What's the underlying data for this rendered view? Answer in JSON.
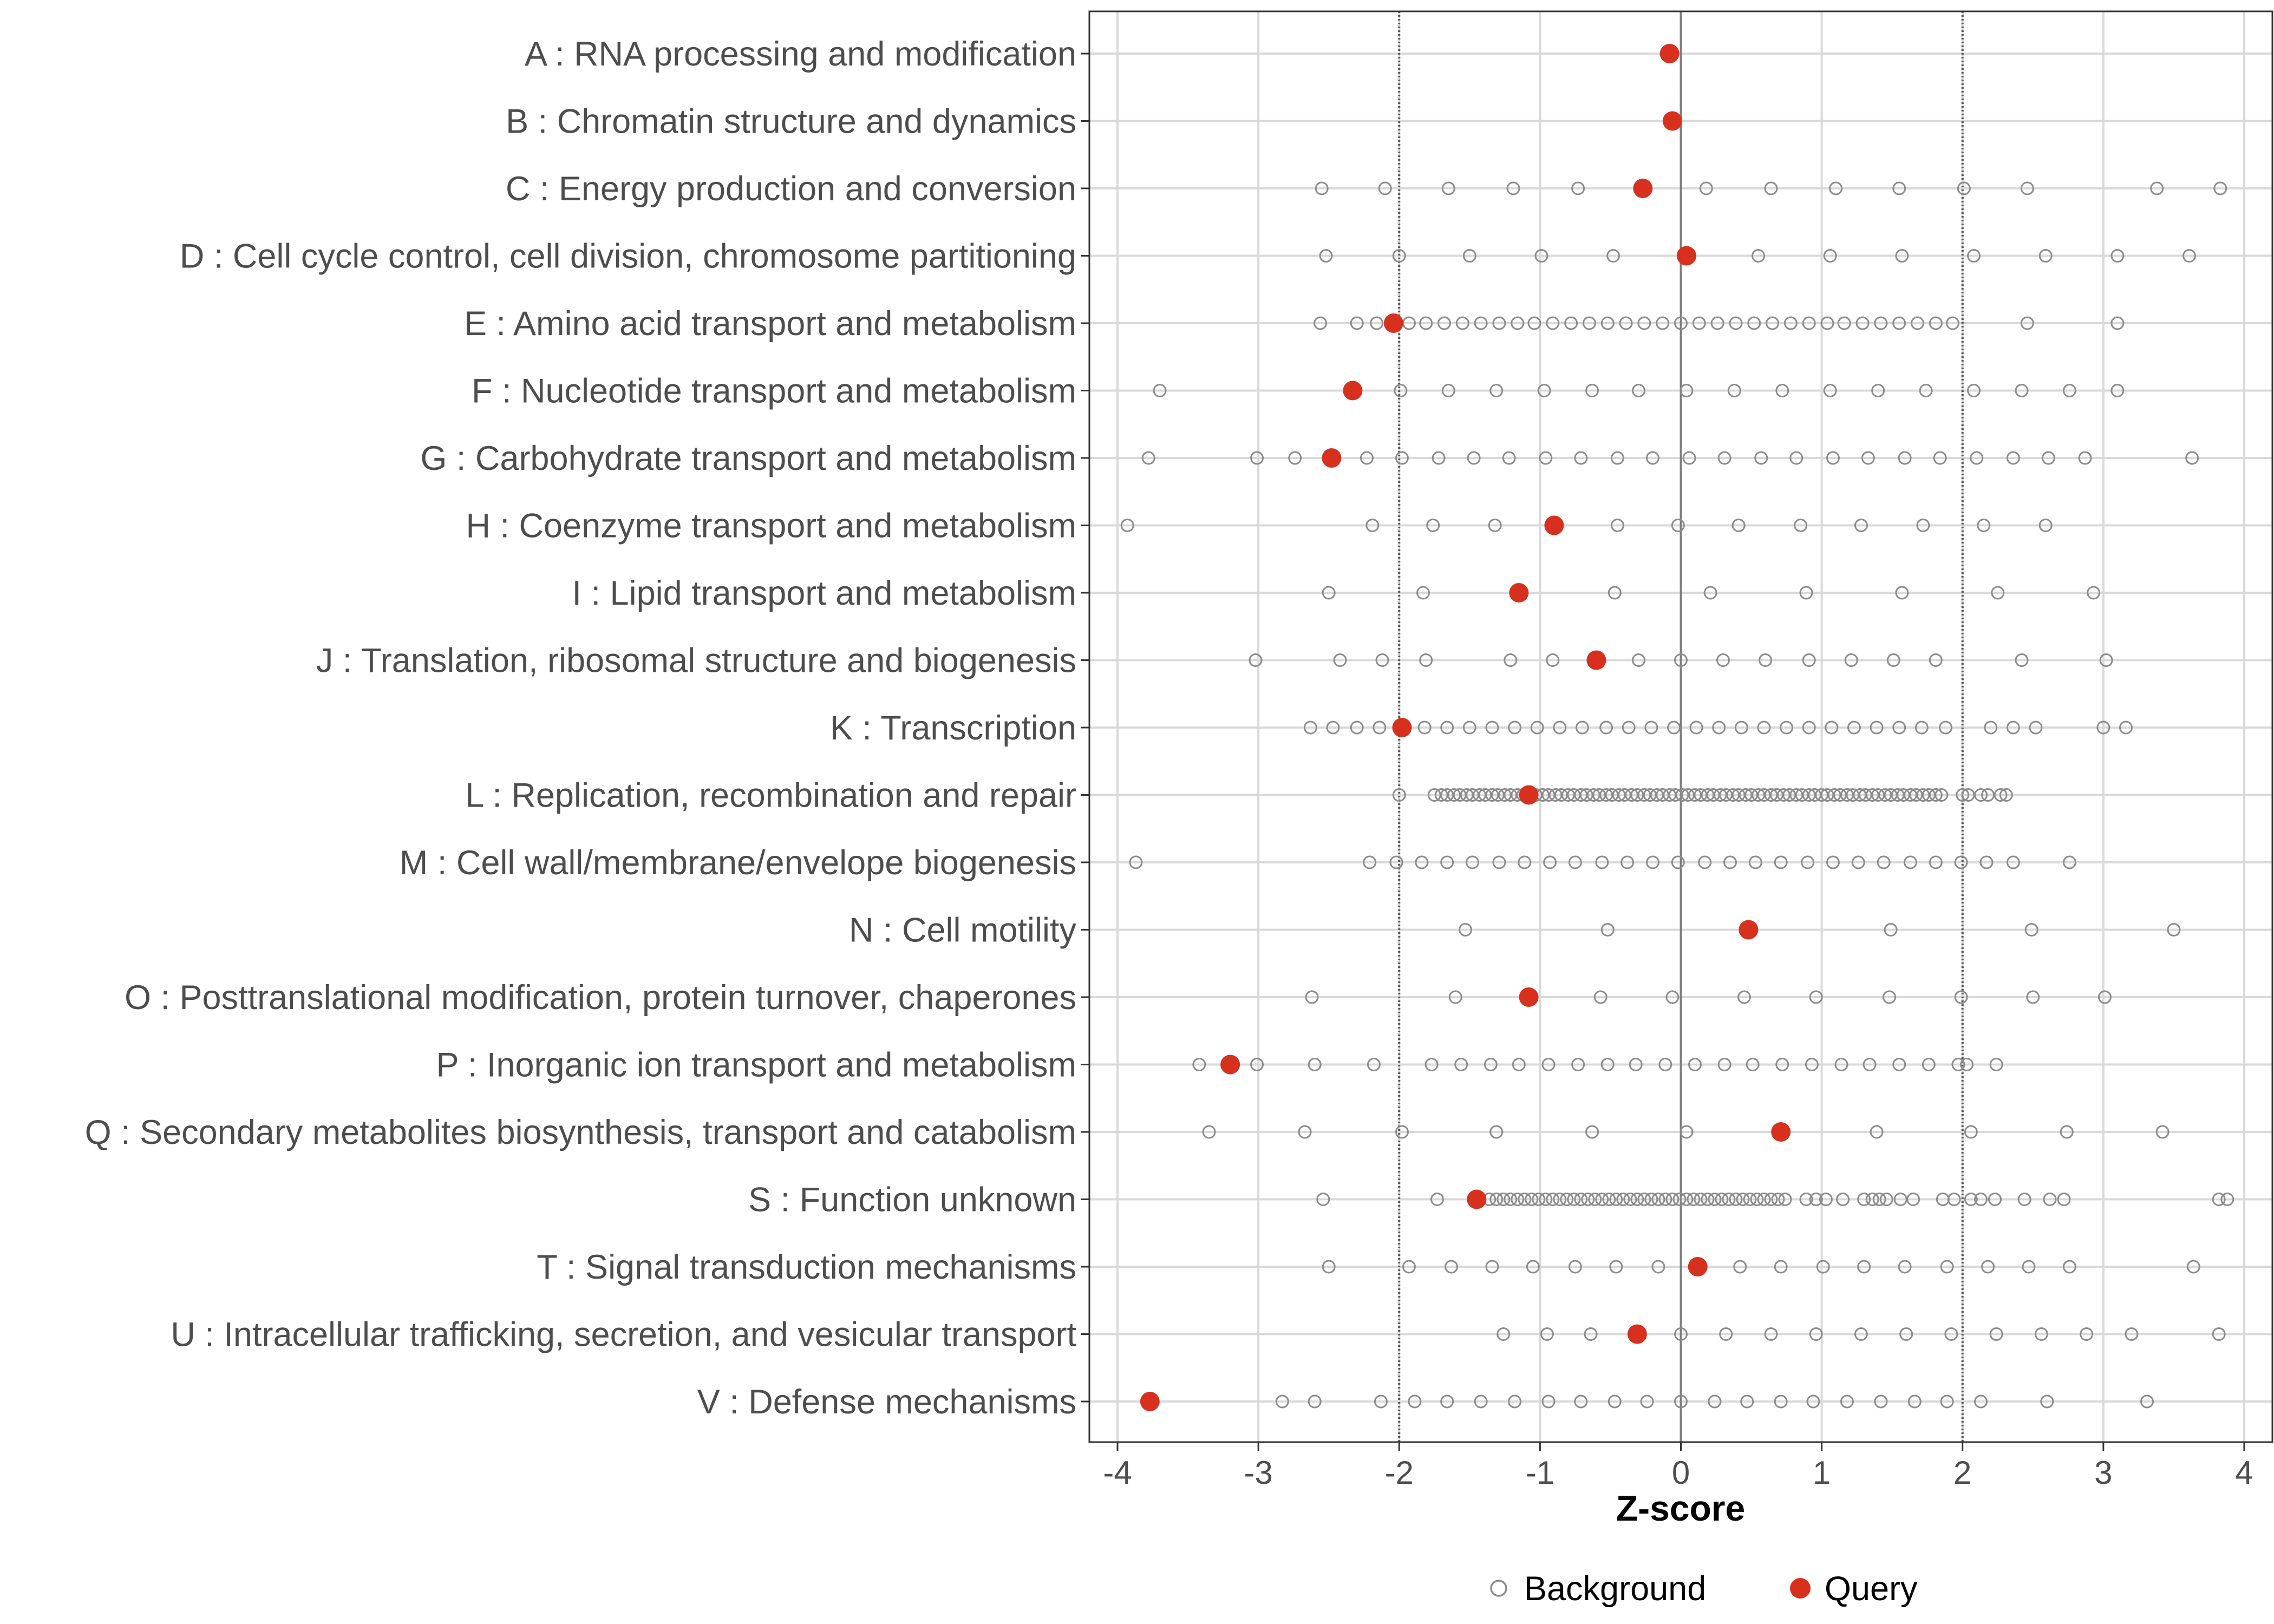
{
  "chart_data": {
    "type": "scatter",
    "xlabel": "Z-score",
    "ylabel": "",
    "xlim": [
      -4.2,
      4.2
    ],
    "x_ticks": [
      "-4",
      "-3",
      "-2",
      "-1",
      "0",
      "1",
      "2",
      "3",
      "4"
    ],
    "reference_lines": [
      -2,
      0,
      2
    ],
    "grid": true,
    "legend": {
      "placement": "bottom",
      "entries": [
        {
          "name": "Background",
          "symbol": "open-circle",
          "color": "#8c8c8c"
        },
        {
          "name": "Query",
          "symbol": "filled-circle",
          "color": "#d7301f"
        }
      ]
    },
    "categories": [
      "A : RNA processing and modification",
      "B : Chromatin structure and dynamics",
      "C : Energy production and conversion",
      "D : Cell cycle control, cell division, chromosome partitioning",
      "E : Amino acid transport and metabolism",
      "F : Nucleotide transport and metabolism",
      "G : Carbohydrate transport and metabolism",
      "H : Coenzyme transport and metabolism",
      "I : Lipid transport and metabolism",
      "J : Translation, ribosomal structure and biogenesis",
      "K : Transcription",
      "L : Replication, recombination and repair",
      "M : Cell wall/membrane/envelope biogenesis",
      "N : Cell motility",
      "O : Posttranslational modification, protein turnover, chaperones",
      "P : Inorganic ion transport and metabolism",
      "Q : Secondary metabolites biosynthesis, transport and catabolism",
      "S : Function unknown",
      "T : Signal transduction mechanisms",
      "U : Intracellular trafficking, secretion, and vesicular transport",
      "V : Defense mechanisms"
    ],
    "series": [
      {
        "name": "Query",
        "values": [
          -0.08,
          -0.06,
          -0.27,
          0.04,
          -2.04,
          -2.33,
          -2.48,
          -0.9,
          -1.15,
          -0.6,
          -1.98,
          -1.08,
          null,
          0.48,
          -1.08,
          -3.2,
          0.71,
          -1.45,
          0.12,
          -0.31,
          -3.77
        ]
      },
      {
        "name": "Background",
        "values": [
          [],
          [],
          [
            -2.55,
            -2.1,
            -1.65,
            -1.19,
            -0.73,
            0.18,
            0.64,
            1.1,
            1.55,
            2.01,
            2.46,
            3.38,
            3.83
          ],
          [
            -2.52,
            -2.0,
            -1.5,
            -0.99,
            -0.48,
            0.55,
            1.06,
            1.57,
            2.08,
            2.59,
            3.1,
            3.61
          ],
          [
            -2.56,
            -2.3,
            -2.16,
            -1.93,
            -1.81,
            -1.68,
            -1.55,
            -1.42,
            -1.29,
            -1.16,
            -1.04,
            -0.91,
            -0.78,
            -0.65,
            -0.52,
            -0.39,
            -0.26,
            -0.13,
            0,
            0.13,
            0.26,
            0.39,
            0.52,
            0.65,
            0.78,
            0.91,
            1.04,
            1.16,
            1.29,
            1.42,
            1.55,
            1.68,
            1.81,
            1.93,
            2.46,
            3.1
          ],
          [
            -3.7,
            -1.99,
            -1.65,
            -1.31,
            -0.97,
            -0.63,
            -0.3,
            0.04,
            0.38,
            0.72,
            1.06,
            1.4,
            1.74,
            2.08,
            2.42,
            2.76,
            3.1
          ],
          [
            -3.78,
            -3.01,
            -2.74,
            -2.23,
            -1.98,
            -1.72,
            -1.47,
            -1.22,
            -0.96,
            -0.71,
            -0.45,
            -0.2,
            0.06,
            0.31,
            0.57,
            0.82,
            1.08,
            1.33,
            1.59,
            1.84,
            2.1,
            2.36,
            2.61,
            2.87,
            3.63
          ],
          [
            -3.93,
            -2.19,
            -1.76,
            -1.32,
            -0.45,
            -0.02,
            0.41,
            0.85,
            1.28,
            1.72,
            2.15,
            2.59
          ],
          [
            -2.5,
            -1.83,
            -0.47,
            0.21,
            0.89,
            1.57,
            2.25,
            2.93
          ],
          [
            -3.02,
            -2.42,
            -2.12,
            -1.81,
            -1.21,
            -0.91,
            -0.3,
            0,
            0.3,
            0.6,
            0.91,
            1.21,
            1.51,
            1.81,
            2.42,
            3.02
          ],
          [
            -2.63,
            -2.47,
            -2.3,
            -2.14,
            -1.82,
            -1.66,
            -1.5,
            -1.34,
            -1.18,
            -1.02,
            -0.86,
            -0.7,
            -0.53,
            -0.37,
            -0.21,
            -0.05,
            0.11,
            0.27,
            0.43,
            0.59,
            0.75,
            0.91,
            1.07,
            1.23,
            1.39,
            1.55,
            1.71,
            1.88,
            2.2,
            2.36,
            2.52,
            3.0,
            3.16
          ],
          [
            -2.0,
            -1.75,
            -1.7,
            -1.66,
            -1.61,
            -1.57,
            -1.52,
            -1.48,
            -1.43,
            -1.39,
            -1.34,
            -1.3,
            -1.25,
            -1.21,
            -1.16,
            -1.12,
            -1.07,
            -1.03,
            -0.98,
            -0.94,
            -0.89,
            -0.85,
            -0.8,
            -0.76,
            -0.71,
            -0.67,
            -0.62,
            -0.58,
            -0.53,
            -0.49,
            -0.44,
            -0.4,
            -0.35,
            -0.31,
            -0.26,
            -0.22,
            -0.17,
            -0.13,
            -0.08,
            -0.04,
            0.01,
            0.05,
            0.1,
            0.14,
            0.19,
            0.23,
            0.28,
            0.32,
            0.37,
            0.41,
            0.46,
            0.5,
            0.55,
            0.59,
            0.64,
            0.68,
            0.73,
            0.77,
            0.82,
            0.86,
            0.91,
            0.95,
            1.0,
            1.04,
            1.09,
            1.13,
            1.18,
            1.22,
            1.27,
            1.31,
            1.36,
            1.4,
            1.45,
            1.49,
            1.54,
            1.58,
            1.63,
            1.67,
            1.72,
            1.76,
            1.81,
            1.85,
            2.0,
            2.04,
            2.13,
            2.18,
            2.27,
            2.31
          ],
          [
            -3.87,
            -2.21,
            -2.02,
            -1.84,
            -1.66,
            -1.48,
            -1.29,
            -1.11,
            -0.93,
            -0.75,
            -0.56,
            -0.38,
            -0.2,
            -0.02,
            0.17,
            0.35,
            0.53,
            0.71,
            0.9,
            1.08,
            1.26,
            1.44,
            1.63,
            1.81,
            1.99,
            2.17,
            2.36,
            2.76
          ],
          [
            -1.53,
            -0.52,
            1.49,
            2.49,
            3.5
          ],
          [
            -2.62,
            -1.6,
            -0.57,
            -0.06,
            0.45,
            0.96,
            1.48,
            1.99,
            2.5,
            3.01
          ],
          [
            -3.42,
            -3.01,
            -2.6,
            -2.18,
            -1.77,
            -1.56,
            -1.35,
            -1.15,
            -0.94,
            -0.73,
            -0.52,
            -0.32,
            -0.11,
            0.1,
            0.31,
            0.51,
            0.72,
            0.93,
            1.14,
            1.34,
            1.55,
            1.76,
            1.97,
            2.03,
            2.24
          ],
          [
            -3.35,
            -2.67,
            -1.98,
            -1.31,
            -0.63,
            0.04,
            1.39,
            2.06,
            2.74,
            3.42
          ],
          [
            -2.54,
            -1.73,
            -1.36,
            -1.31,
            -1.26,
            -1.21,
            -1.16,
            -1.11,
            -1.06,
            -1.01,
            -0.96,
            -0.91,
            -0.86,
            -0.81,
            -0.76,
            -0.71,
            -0.66,
            -0.61,
            -0.56,
            -0.51,
            -0.46,
            -0.41,
            -0.36,
            -0.31,
            -0.26,
            -0.21,
            -0.16,
            -0.11,
            -0.06,
            -0.01,
            0.04,
            0.09,
            0.14,
            0.19,
            0.24,
            0.29,
            0.34,
            0.39,
            0.44,
            0.49,
            0.54,
            0.59,
            0.64,
            0.69,
            0.74,
            0.89,
            0.96,
            1.03,
            1.15,
            1.3,
            1.36,
            1.41,
            1.46,
            1.56,
            1.65,
            1.86,
            1.94,
            2.06,
            2.13,
            2.23,
            2.44,
            2.62,
            2.72,
            3.82,
            3.88
          ],
          [
            -2.5,
            -1.93,
            -1.63,
            -1.34,
            -1.05,
            -0.75,
            -0.46,
            -0.16,
            0.42,
            0.71,
            1.01,
            1.3,
            1.59,
            1.89,
            2.18,
            2.47,
            2.76,
            3.64
          ],
          [
            -1.26,
            -0.95,
            -0.64,
            0.0,
            0.32,
            0.64,
            0.96,
            1.28,
            1.6,
            1.92,
            2.24,
            2.56,
            2.88,
            3.2,
            3.82
          ],
          [
            -2.83,
            -2.6,
            -2.13,
            -1.89,
            -1.66,
            -1.42,
            -1.18,
            -0.94,
            -0.71,
            -0.47,
            -0.24,
            0,
            0.24,
            0.47,
            0.71,
            0.94,
            1.18,
            1.42,
            1.66,
            1.89,
            2.13,
            2.6,
            3.31
          ]
        ]
      }
    ]
  }
}
